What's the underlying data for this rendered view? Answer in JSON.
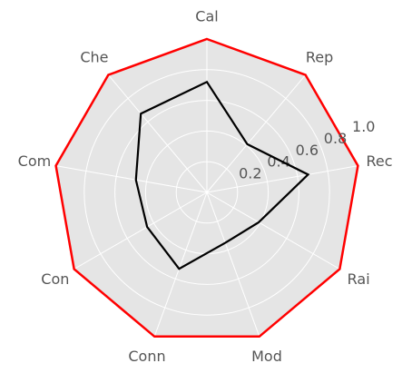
{
  "chart_data": {
    "type": "radar",
    "categories": [
      "Cal",
      "Rep",
      "Rec",
      "Rai",
      "Mod",
      "Conn",
      "Con",
      "Com",
      "Che"
    ],
    "series": [
      {
        "color": "#000000",
        "values": [
          0.72,
          0.41,
          0.67,
          0.39,
          0.35,
          0.53,
          0.45,
          0.47,
          0.67
        ]
      }
    ],
    "ylim": [
      0,
      1
    ],
    "yticks": [
      0.2,
      0.4,
      0.6,
      0.8,
      {
        "value": 1,
        "label": "1.0"
      }
    ],
    "grid": true,
    "frame_color": "#ff0000"
  }
}
